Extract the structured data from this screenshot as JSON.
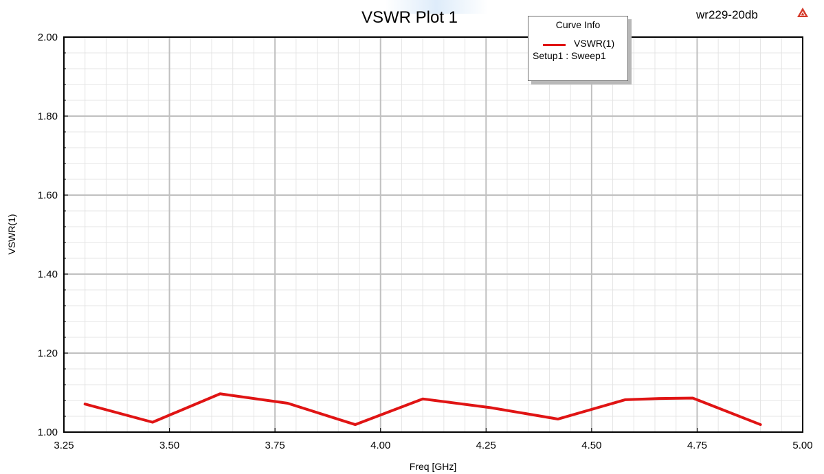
{
  "header": {
    "project_name": "wr229-20db"
  },
  "legend": {
    "title": "Curve Info",
    "series_name": "VSWR(1)",
    "setup": "Setup1 : Sweep1"
  },
  "colors": {
    "series": "#e01414",
    "major_grid": "#c0c0c0",
    "minor_grid": "#e4e4e4",
    "frame": "#000000"
  },
  "icons": {
    "logo": "ansys-logo-icon"
  },
  "chart_data": {
    "type": "line",
    "title": "VSWR Plot 1",
    "xlabel": "Freq [GHz]",
    "ylabel": "VSWR(1)",
    "xlim": [
      3.25,
      5.0
    ],
    "ylim": [
      1.0,
      2.0
    ],
    "x_ticks": [
      "3.25",
      "3.50",
      "3.75",
      "4.00",
      "4.25",
      "4.50",
      "4.75",
      "5.00"
    ],
    "y_ticks": [
      "1.00",
      "1.20",
      "1.40",
      "1.60",
      "1.80",
      "2.00"
    ],
    "grid": true,
    "legend_position": "top-right",
    "series": [
      {
        "name": "VSWR(1)",
        "x": [
          3.3,
          3.46,
          3.62,
          3.78,
          3.94,
          4.1,
          4.26,
          4.42,
          4.58,
          4.66,
          4.74,
          4.9
        ],
        "values": [
          1.071,
          1.025,
          1.097,
          1.073,
          1.019,
          1.084,
          1.062,
          1.033,
          1.082,
          1.085,
          1.086,
          1.019
        ]
      }
    ]
  }
}
